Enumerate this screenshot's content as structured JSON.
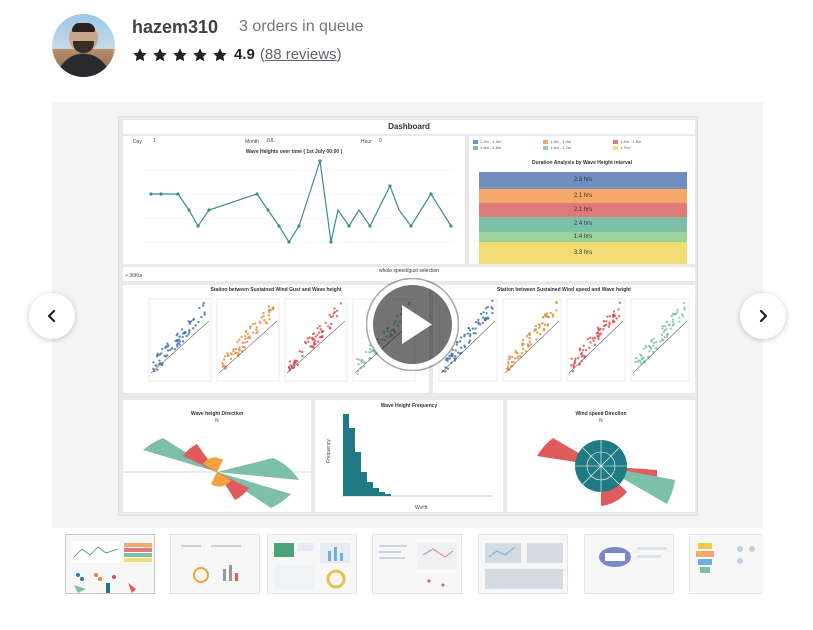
{
  "seller": {
    "name": "hazem310",
    "queue": "3 orders in queue",
    "rating": "4.9",
    "reviews_open": "(",
    "reviews_link": "88 reviews",
    "reviews_close": ")",
    "star_color": "#222325",
    "star_count": 5
  },
  "gallery": {
    "dashboard": {
      "title": "Dashboard",
      "filters": {
        "day_label": "Day",
        "day_value": "1",
        "month_label": "Month",
        "month_value": "JUL",
        "hour_label": "Hour",
        "hour_value": "0"
      },
      "line_chart": {
        "title": "Wave Heights over time ( 1st July 00:00 )"
      },
      "duration": {
        "title": "Duration Analysis by Wave Height interval",
        "legend": [
          "1.2m - 1.3m",
          "1.3m - 1.4m",
          "1.4m - 1.5m",
          "1.5m - 1.6m",
          "1.6m - 1.7m",
          "1.7m+"
        ],
        "bars": [
          "2.8 hrs",
          "2.1 hrs",
          "2.1 hrs",
          "2.4 hrs",
          "1.4 hrs",
          "3.3 hrs"
        ]
      },
      "selection": {
        "title": "whole speed/gust selection",
        "tag": "> 30Kts"
      },
      "scatter_left": {
        "title": "Station between Sustained Wind Gust and Wave height"
      },
      "scatter_right": {
        "title": "Station between Sustained Wind speed and Wave height"
      },
      "rose_left": {
        "title": "Wave height Direction",
        "north": "N"
      },
      "hist": {
        "title": "Wave Height Frequency",
        "ylabel": "Frequency",
        "xlabel": "WvHt"
      },
      "rose_right": {
        "title": "Wind speed Direction",
        "north": "N"
      }
    },
    "play_icon": "play-icon",
    "prev_icon": "chevron-left-icon",
    "next_icon": "chevron-right-icon"
  },
  "thumbnails": [
    {
      "name": "thumb-1"
    },
    {
      "name": "thumb-2"
    },
    {
      "name": "thumb-3"
    },
    {
      "name": "thumb-4"
    },
    {
      "name": "thumb-5"
    },
    {
      "name": "thumb-6"
    },
    {
      "name": "thumb-7"
    }
  ]
}
